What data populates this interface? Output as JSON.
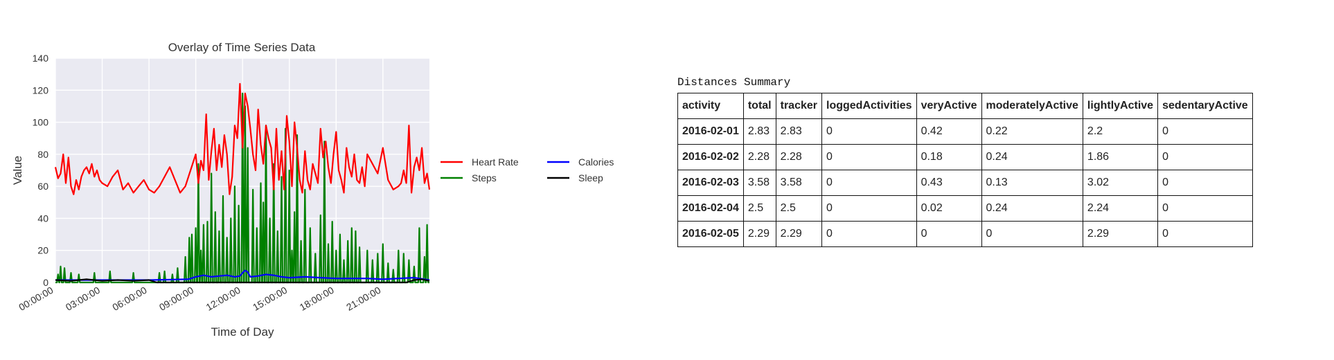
{
  "chart_data": {
    "type": "line",
    "title": "Overlay of Time Series Data",
    "xlabel": "Time of Day",
    "ylabel": "Value",
    "ylim": [
      0,
      140
    ],
    "xlim": [
      "00:00:00",
      "23:59:00"
    ],
    "yticks": [
      0,
      20,
      40,
      60,
      80,
      100,
      120,
      140
    ],
    "xticks": [
      "00:00:00",
      "03:00:00",
      "06:00:00",
      "09:00:00",
      "12:00:00",
      "15:00:00",
      "18:00:00",
      "21:00:00"
    ],
    "grid": true,
    "legend_position": "right",
    "series": [
      {
        "name": "Heart Rate",
        "color": "#ff0000",
        "x": [
          "00:00",
          "00:10",
          "00:20",
          "00:30",
          "00:40",
          "00:50",
          "01:00",
          "01:10",
          "01:20",
          "01:30",
          "01:40",
          "01:50",
          "02:00",
          "02:10",
          "02:20",
          "02:30",
          "02:40",
          "02:50",
          "03:00",
          "03:20",
          "03:40",
          "04:00",
          "04:20",
          "04:40",
          "05:00",
          "05:20",
          "05:40",
          "06:00",
          "06:20",
          "06:40",
          "07:00",
          "07:20",
          "07:40",
          "08:00",
          "08:20",
          "08:40",
          "09:00",
          "09:10",
          "09:20",
          "09:30",
          "09:40",
          "09:50",
          "10:00",
          "10:10",
          "10:20",
          "10:30",
          "10:40",
          "10:50",
          "11:00",
          "11:10",
          "11:20",
          "11:30",
          "11:40",
          "11:50",
          "12:00",
          "12:10",
          "12:20",
          "12:30",
          "12:40",
          "12:50",
          "13:00",
          "13:10",
          "13:20",
          "13:30",
          "13:40",
          "13:50",
          "14:00",
          "14:10",
          "14:20",
          "14:30",
          "14:40",
          "14:50",
          "15:00",
          "15:10",
          "15:20",
          "15:30",
          "15:40",
          "15:50",
          "16:00",
          "16:10",
          "16:20",
          "16:30",
          "16:40",
          "16:50",
          "17:00",
          "17:10",
          "17:20",
          "17:30",
          "17:40",
          "17:50",
          "18:00",
          "18:10",
          "18:20",
          "18:30",
          "18:40",
          "18:50",
          "19:00",
          "19:10",
          "19:20",
          "19:30",
          "19:40",
          "19:50",
          "20:00",
          "20:20",
          "20:40",
          "21:00",
          "21:20",
          "21:40",
          "22:00",
          "22:10",
          "22:20",
          "22:30",
          "22:40",
          "22:50",
          "23:00",
          "23:10",
          "23:20",
          "23:30",
          "23:40",
          "23:50",
          "23:59"
        ],
        "values": [
          72,
          65,
          68,
          80,
          62,
          78,
          60,
          55,
          64,
          58,
          66,
          70,
          72,
          68,
          74,
          66,
          70,
          64,
          62,
          60,
          66,
          70,
          58,
          62,
          56,
          60,
          64,
          58,
          56,
          60,
          66,
          72,
          64,
          56,
          60,
          70,
          80,
          62,
          76,
          70,
          105,
          64,
          82,
          96,
          70,
          86,
          72,
          92,
          80,
          55,
          66,
          98,
          90,
          124,
          84,
          118,
          110,
          96,
          80,
          70,
          108,
          86,
          74,
          98,
          90,
          84,
          58,
          96,
          64,
          82,
          58,
          104,
          88,
          60,
          100,
          84,
          64,
          56,
          82,
          64,
          58,
          74,
          68,
          62,
          96,
          78,
          88,
          72,
          62,
          80,
          94,
          70,
          64,
          56,
          84,
          72,
          66,
          80,
          64,
          62,
          72,
          60,
          80,
          74,
          68,
          84,
          64,
          58,
          60,
          62,
          70,
          62,
          98,
          56,
          72,
          78,
          70,
          84,
          62,
          68,
          58
        ],
        "linewidth": 2.2
      },
      {
        "name": "Steps",
        "color": "#008000",
        "x": [
          "00:10",
          "00:20",
          "00:35",
          "01:00",
          "01:30",
          "02:30",
          "03:30",
          "05:00",
          "06:40",
          "07:00",
          "07:30",
          "07:50",
          "08:20",
          "08:35",
          "08:45",
          "09:00",
          "09:10",
          "09:20",
          "09:30",
          "09:45",
          "10:00",
          "10:15",
          "10:30",
          "10:45",
          "11:00",
          "11:15",
          "11:30",
          "11:45",
          "12:00",
          "12:10",
          "12:20",
          "12:40",
          "12:55",
          "13:10",
          "13:20",
          "13:30",
          "13:45",
          "14:00",
          "14:15",
          "14:30",
          "14:45",
          "15:00",
          "15:10",
          "15:20",
          "15:30",
          "15:45",
          "16:00",
          "16:20",
          "16:40",
          "17:00",
          "17:15",
          "17:30",
          "17:45",
          "18:00",
          "18:15",
          "18:30",
          "18:45",
          "19:00",
          "19:15",
          "19:30",
          "20:00",
          "20:20",
          "20:40",
          "21:00",
          "21:20",
          "21:40",
          "22:00",
          "22:20",
          "22:40",
          "23:00",
          "23:20",
          "23:40",
          "23:50"
        ],
        "values": [
          5,
          10,
          9,
          6,
          5,
          6,
          7,
          6,
          6,
          7,
          5,
          9,
          16,
          28,
          30,
          34,
          74,
          20,
          36,
          38,
          68,
          44,
          32,
          54,
          28,
          40,
          60,
          48,
          118,
          110,
          84,
          58,
          34,
          62,
          50,
          98,
          40,
          74,
          32,
          66,
          96,
          70,
          20,
          44,
          92,
          26,
          58,
          34,
          18,
          42,
          88,
          24,
          38,
          20,
          30,
          14,
          26,
          34,
          32,
          22,
          20,
          14,
          18,
          24,
          12,
          8,
          20,
          18,
          14,
          10,
          34,
          16,
          36
        ],
        "linewidth": 2.2
      },
      {
        "name": "Calories",
        "color": "#0000ff",
        "x": [
          "00:00",
          "03:00",
          "06:00",
          "08:30",
          "09:00",
          "09:30",
          "10:00",
          "10:30",
          "11:00",
          "11:30",
          "11:50",
          "12:00",
          "12:10",
          "12:20",
          "12:30",
          "13:00",
          "13:30",
          "14:00",
          "14:30",
          "15:00",
          "16:00",
          "17:00",
          "18:00",
          "19:00",
          "20:00",
          "21:00",
          "22:00",
          "23:00",
          "23:59"
        ],
        "values": [
          1.5,
          1.5,
          1.5,
          2,
          3.5,
          4.5,
          3.5,
          4,
          4.5,
          3.5,
          4,
          6,
          7.5,
          6.5,
          3.5,
          4,
          5,
          4.5,
          3.5,
          3,
          3.5,
          3,
          2.5,
          2.5,
          2.5,
          2,
          2.5,
          3,
          1.5
        ],
        "linewidth": 2.2
      },
      {
        "name": "Sleep",
        "color": "#000000",
        "x": [
          "00:00",
          "01:00",
          "02:00",
          "03:00",
          "04:00",
          "05:00",
          "06:00",
          "06:30",
          "22:30",
          "23:00",
          "23:30",
          "23:59"
        ],
        "values": [
          1.5,
          1,
          2,
          1,
          1.5,
          1,
          1.5,
          0,
          0,
          1.5,
          2,
          1
        ],
        "linewidth": 2.2
      }
    ]
  },
  "table": {
    "caption": "Distances Summary",
    "columns": [
      "activity",
      "total",
      "tracker",
      "loggedActivities",
      "veryActive",
      "moderatelyActive",
      "lightlyActive",
      "sedentaryActive"
    ],
    "rows": [
      [
        "2016-02-01",
        "2.83",
        "2.83",
        "0",
        "0.42",
        "0.22",
        "2.2",
        "0"
      ],
      [
        "2016-02-02",
        "2.28",
        "2.28",
        "0",
        "0.18",
        "0.24",
        "1.86",
        "0"
      ],
      [
        "2016-02-03",
        "3.58",
        "3.58",
        "0",
        "0.43",
        "0.13",
        "3.02",
        "0"
      ],
      [
        "2016-02-04",
        "2.5",
        "2.5",
        "0",
        "0.02",
        "0.24",
        "2.24",
        "0"
      ],
      [
        "2016-02-05",
        "2.29",
        "2.29",
        "0",
        "0",
        "0",
        "2.29",
        "0"
      ]
    ]
  }
}
